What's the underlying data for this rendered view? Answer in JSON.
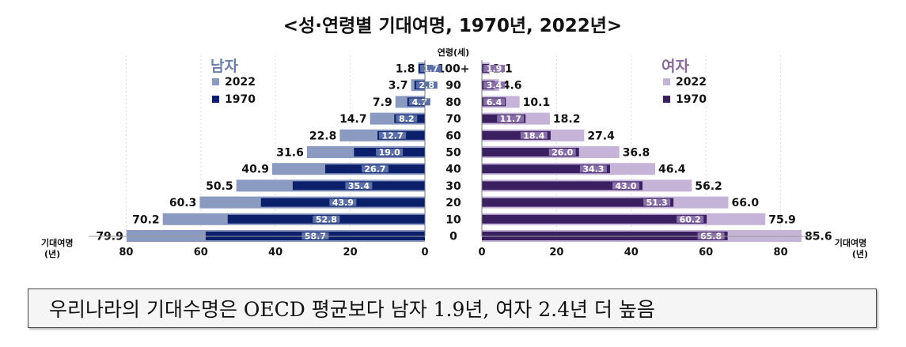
{
  "chart_data": {
    "type": "bar",
    "title": "<성·연령별 기대여명, 1970년, 2022년>",
    "center_axis_label": "연령(세)",
    "categories": [
      "100+",
      "90",
      "80",
      "70",
      "60",
      "50",
      "40",
      "30",
      "20",
      "10",
      "0"
    ],
    "panels": [
      {
        "title": "남자",
        "title_color": "#6b7fa8",
        "series": [
          {
            "name": "2022",
            "color": "#8a9ac0",
            "values": [
              1.8,
              3.7,
              7.9,
              14.7,
              22.8,
              31.6,
              40.9,
              50.5,
              60.3,
              70.2,
              79.9
            ]
          },
          {
            "name": "1970",
            "color": "#0c1f6b",
            "values": [
              1.7,
              2.8,
              4.7,
              8.2,
              12.7,
              19.0,
              26.7,
              35.4,
              43.9,
              52.8,
              58.7
            ]
          }
        ],
        "axis_label": [
          "기대여명",
          "(년)"
        ],
        "ticks": [
          "80",
          "60",
          "40",
          "20",
          "0"
        ]
      },
      {
        "title": "여자",
        "title_color": "#8a6a9c",
        "series": [
          {
            "name": "2022",
            "color": "#c5b3d8",
            "values": [
              2.1,
              4.6,
              10.1,
              18.2,
              27.4,
              36.8,
              46.4,
              56.2,
              66.0,
              75.9,
              85.6
            ]
          },
          {
            "name": "1970",
            "color": "#3a2060",
            "values": [
              1.9,
              3.4,
              6.4,
              11.7,
              18.4,
              26.0,
              34.3,
              43.0,
              51.3,
              60.2,
              65.8
            ]
          }
        ],
        "axis_label": [
          "기대여명",
          "(년)"
        ],
        "ticks": [
          "0",
          "20",
          "40",
          "60",
          "80"
        ]
      }
    ],
    "xlim": [
      0,
      90
    ],
    "grid": false
  },
  "summary": {
    "text": "우리나라의 기대수명은 OECD 평균보다 남자 1.9년, 여자 2.4년 더 높음"
  }
}
